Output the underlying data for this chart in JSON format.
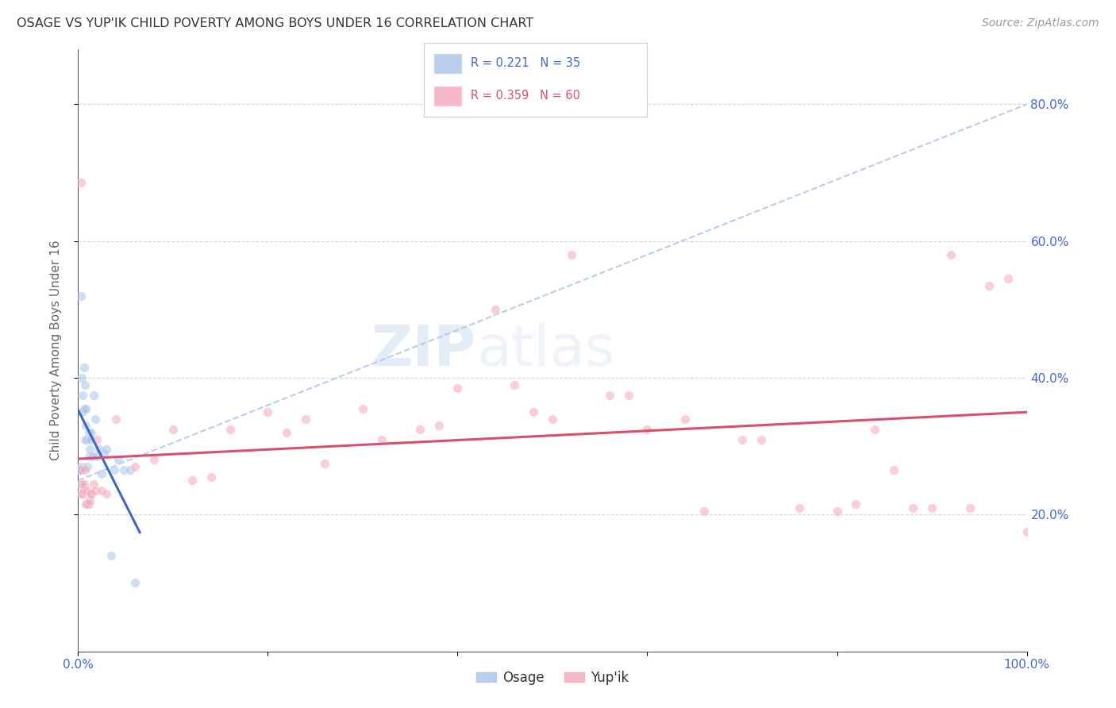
{
  "title": "OSAGE VS YUP'IK CHILD POVERTY AMONG BOYS UNDER 16 CORRELATION CHART",
  "source": "Source: ZipAtlas.com",
  "ylabel": "Child Poverty Among Boys Under 16",
  "osage_R": 0.221,
  "osage_N": 35,
  "yupik_R": 0.359,
  "yupik_N": 60,
  "osage_color": "#a8c4e8",
  "yupik_color": "#f4a8bb",
  "osage_line_color": "#3a6abf",
  "yupik_line_color": "#d94f70",
  "dashed_color": "#b0c8e8",
  "background_color": "#ffffff",
  "grid_color": "#cccccc",
  "title_color": "#333333",
  "axis_label_color": "#666666",
  "tick_label_color": "#4466cc",
  "watermark_color": "#d0e4f4",
  "osage_x": [
    0.001,
    0.002,
    0.003,
    0.003,
    0.004,
    0.004,
    0.005,
    0.005,
    0.006,
    0.006,
    0.007,
    0.007,
    0.008,
    0.008,
    0.009,
    0.01,
    0.011,
    0.012,
    0.012,
    0.013,
    0.014,
    0.015,
    0.016,
    0.018,
    0.02,
    0.022,
    0.025,
    0.027,
    0.03,
    0.035,
    0.038,
    0.042,
    0.048,
    0.055,
    0.06
  ],
  "osage_y": [
    0.265,
    0.245,
    0.52,
    0.265,
    0.27,
    0.4,
    0.35,
    0.375,
    0.355,
    0.415,
    0.31,
    0.39,
    0.33,
    0.355,
    0.31,
    0.27,
    0.32,
    0.285,
    0.295,
    0.31,
    0.32,
    0.285,
    0.375,
    0.34,
    0.285,
    0.295,
    0.26,
    0.29,
    0.295,
    0.14,
    0.265,
    0.28,
    0.265,
    0.265,
    0.1
  ],
  "yupik_x": [
    0.002,
    0.003,
    0.003,
    0.004,
    0.005,
    0.006,
    0.006,
    0.007,
    0.008,
    0.009,
    0.01,
    0.011,
    0.012,
    0.013,
    0.014,
    0.016,
    0.018,
    0.02,
    0.025,
    0.03,
    0.04,
    0.06,
    0.08,
    0.1,
    0.12,
    0.14,
    0.16,
    0.2,
    0.22,
    0.24,
    0.26,
    0.3,
    0.32,
    0.36,
    0.38,
    0.4,
    0.44,
    0.46,
    0.48,
    0.5,
    0.52,
    0.56,
    0.58,
    0.6,
    0.64,
    0.66,
    0.7,
    0.72,
    0.76,
    0.8,
    0.82,
    0.84,
    0.86,
    0.88,
    0.9,
    0.92,
    0.94,
    0.96,
    0.98,
    1.0
  ],
  "yupik_y": [
    0.265,
    0.685,
    0.23,
    0.245,
    0.23,
    0.235,
    0.245,
    0.265,
    0.215,
    0.215,
    0.235,
    0.215,
    0.22,
    0.23,
    0.23,
    0.245,
    0.235,
    0.31,
    0.235,
    0.23,
    0.34,
    0.27,
    0.28,
    0.325,
    0.25,
    0.255,
    0.325,
    0.35,
    0.32,
    0.34,
    0.275,
    0.355,
    0.31,
    0.325,
    0.33,
    0.385,
    0.5,
    0.39,
    0.35,
    0.34,
    0.58,
    0.375,
    0.375,
    0.325,
    0.34,
    0.205,
    0.31,
    0.31,
    0.21,
    0.205,
    0.215,
    0.325,
    0.265,
    0.21,
    0.21,
    0.58,
    0.21,
    0.535,
    0.545,
    0.175
  ],
  "xlim": [
    0.0,
    1.0
  ],
  "ylim": [
    0.0,
    0.88
  ],
  "xtick_positions": [
    0.0,
    0.2,
    0.4,
    0.6,
    0.8,
    1.0
  ],
  "xticklabels": [
    "0.0%",
    "",
    "",
    "",
    "",
    "100.0%"
  ],
  "ytick_positions": [
    0.2,
    0.4,
    0.6,
    0.8
  ],
  "yticklabels_right": [
    "20.0%",
    "40.0%",
    "60.0%",
    "80.0%"
  ],
  "bottom_legend_labels": [
    "Osage",
    "Yup'ik"
  ],
  "marker_size": 70,
  "marker_alpha": 0.55,
  "osage_line_x_end": 0.065,
  "dashed_line_start_x": 0.0,
  "dashed_line_end_x": 1.0,
  "dashed_line_start_y": 0.25,
  "dashed_line_end_y": 0.8
}
